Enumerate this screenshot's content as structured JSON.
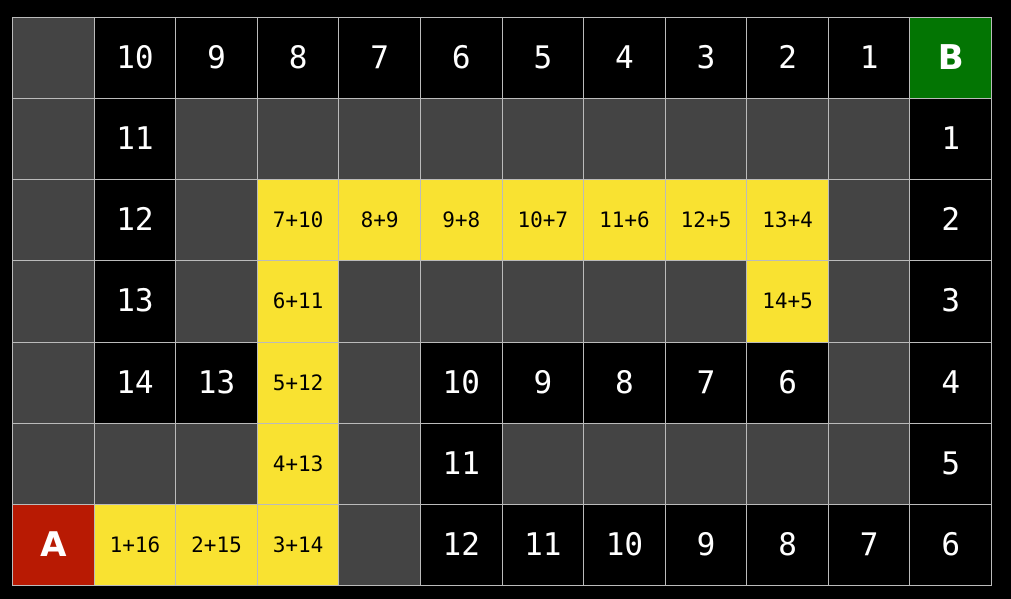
{
  "colors": {
    "wall": "#444444",
    "open": "#000000",
    "path": "#f9e231",
    "start": "#b81a03",
    "goal": "#037503",
    "gridline": "#bbbbbb"
  },
  "grid": [
    [
      {
        "t": "wall"
      },
      {
        "t": "open",
        "v": "10"
      },
      {
        "t": "open",
        "v": "9"
      },
      {
        "t": "open",
        "v": "8"
      },
      {
        "t": "open",
        "v": "7"
      },
      {
        "t": "open",
        "v": "6"
      },
      {
        "t": "open",
        "v": "5"
      },
      {
        "t": "open",
        "v": "4"
      },
      {
        "t": "open",
        "v": "3"
      },
      {
        "t": "open",
        "v": "2"
      },
      {
        "t": "open",
        "v": "1"
      },
      {
        "t": "goal",
        "v": "B"
      }
    ],
    [
      {
        "t": "wall"
      },
      {
        "t": "open",
        "v": "11"
      },
      {
        "t": "wall"
      },
      {
        "t": "wall"
      },
      {
        "t": "wall"
      },
      {
        "t": "wall"
      },
      {
        "t": "wall"
      },
      {
        "t": "wall"
      },
      {
        "t": "wall"
      },
      {
        "t": "wall"
      },
      {
        "t": "wall"
      },
      {
        "t": "open",
        "v": "1"
      }
    ],
    [
      {
        "t": "wall"
      },
      {
        "t": "open",
        "v": "12"
      },
      {
        "t": "wall"
      },
      {
        "t": "path",
        "v": "7+10"
      },
      {
        "t": "path",
        "v": "8+9"
      },
      {
        "t": "path",
        "v": "9+8"
      },
      {
        "t": "path",
        "v": "10+7"
      },
      {
        "t": "path",
        "v": "11+6"
      },
      {
        "t": "path",
        "v": "12+5"
      },
      {
        "t": "path",
        "v": "13+4"
      },
      {
        "t": "wall"
      },
      {
        "t": "open",
        "v": "2"
      }
    ],
    [
      {
        "t": "wall"
      },
      {
        "t": "open",
        "v": "13"
      },
      {
        "t": "wall"
      },
      {
        "t": "path",
        "v": "6+11"
      },
      {
        "t": "wall"
      },
      {
        "t": "wall"
      },
      {
        "t": "wall"
      },
      {
        "t": "wall"
      },
      {
        "t": "wall"
      },
      {
        "t": "path",
        "v": "14+5"
      },
      {
        "t": "wall"
      },
      {
        "t": "open",
        "v": "3"
      }
    ],
    [
      {
        "t": "wall"
      },
      {
        "t": "open",
        "v": "14"
      },
      {
        "t": "open",
        "v": "13"
      },
      {
        "t": "path",
        "v": "5+12"
      },
      {
        "t": "wall"
      },
      {
        "t": "open",
        "v": "10"
      },
      {
        "t": "open",
        "v": "9"
      },
      {
        "t": "open",
        "v": "8"
      },
      {
        "t": "open",
        "v": "7"
      },
      {
        "t": "open",
        "v": "6"
      },
      {
        "t": "wall"
      },
      {
        "t": "open",
        "v": "4"
      }
    ],
    [
      {
        "t": "wall"
      },
      {
        "t": "wall"
      },
      {
        "t": "wall"
      },
      {
        "t": "path",
        "v": "4+13"
      },
      {
        "t": "wall"
      },
      {
        "t": "open",
        "v": "11"
      },
      {
        "t": "wall"
      },
      {
        "t": "wall"
      },
      {
        "t": "wall"
      },
      {
        "t": "wall"
      },
      {
        "t": "wall"
      },
      {
        "t": "open",
        "v": "5"
      }
    ],
    [
      {
        "t": "start",
        "v": "A"
      },
      {
        "t": "path",
        "v": "1+16"
      },
      {
        "t": "path",
        "v": "2+15"
      },
      {
        "t": "path",
        "v": "3+14"
      },
      {
        "t": "wall"
      },
      {
        "t": "open",
        "v": "12"
      },
      {
        "t": "open",
        "v": "11"
      },
      {
        "t": "open",
        "v": "10"
      },
      {
        "t": "open",
        "v": "9"
      },
      {
        "t": "open",
        "v": "8"
      },
      {
        "t": "open",
        "v": "7"
      },
      {
        "t": "open",
        "v": "6"
      }
    ]
  ]
}
